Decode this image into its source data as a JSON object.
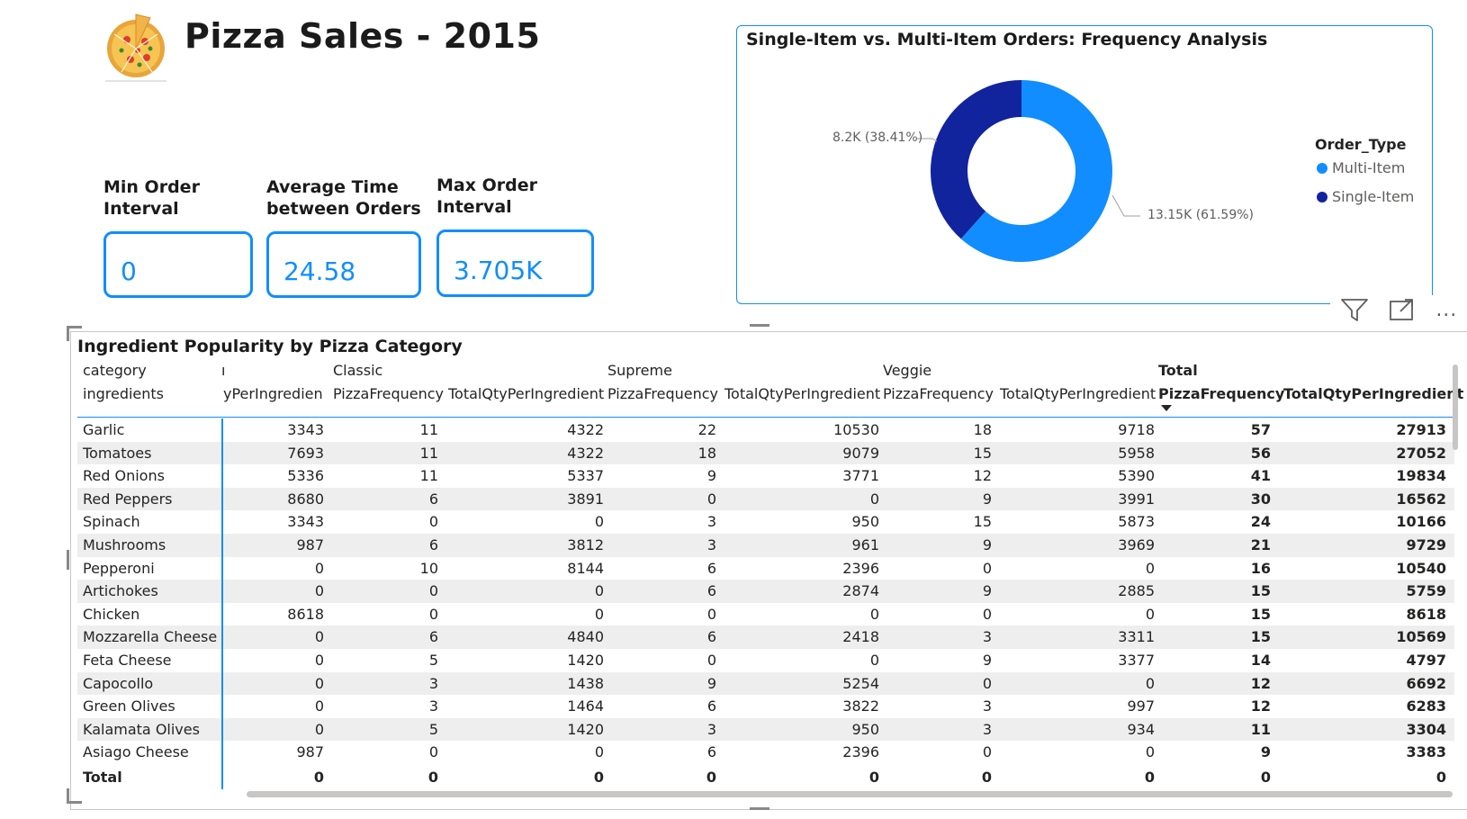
{
  "header": {
    "title": "Pizza Sales - 2015",
    "logo_icon": "pizza-icon"
  },
  "kpis": [
    {
      "label_line1": "Min Order",
      "label_line2": "Interval",
      "value": "0"
    },
    {
      "label_line1": "Average Time",
      "label_line2": "between Orders",
      "value": "24.58"
    },
    {
      "label_line1": "Max Order",
      "label_line2": "Interval",
      "value": "3.705K"
    }
  ],
  "donut": {
    "title": "Single-Item vs. Multi-Item Orders: Frequency Analysis",
    "legend_title": "Order_Type",
    "labels": {
      "single": "8.2K (38.41%)",
      "multi": "13.15K (61.59%)"
    },
    "colors": {
      "multi": "#118dff",
      "single": "#12239e"
    }
  },
  "chart_data": {
    "type": "pie",
    "title": "Single-Item vs. Multi-Item Orders: Frequency Analysis",
    "legend_title": "Order_Type",
    "categories": [
      "Multi-Item",
      "Single-Item"
    ],
    "values": [
      13150,
      8200
    ],
    "percentages": [
      61.59,
      38.41
    ],
    "legend_position": "right"
  },
  "visual_header": {
    "icons": [
      "filter-icon",
      "focus-mode-icon",
      "more-options-icon"
    ],
    "more": "..."
  },
  "table": {
    "title": "Ingredient Popularity by Pizza Category",
    "row_header_label": "category",
    "col_header_label": "ingredients",
    "partial_col_label": "yPerIngredient",
    "partial_group_label": "ı",
    "groups": [
      "Classic",
      "Supreme",
      "Veggie",
      "Total"
    ],
    "measure1": "PizzaFrequency",
    "measure2": "TotalQtyPerIngredient",
    "rows": [
      {
        "name": "Garlic",
        "c0": "3343",
        "c1": "11",
        "c2": "4322",
        "c3": "22",
        "c4": "10530",
        "c5": "18",
        "c6": "9718",
        "t1": "57",
        "t2": "27913"
      },
      {
        "name": "Tomatoes",
        "c0": "7693",
        "c1": "11",
        "c2": "4322",
        "c3": "18",
        "c4": "9079",
        "c5": "15",
        "c6": "5958",
        "t1": "56",
        "t2": "27052"
      },
      {
        "name": "Red Onions",
        "c0": "5336",
        "c1": "11",
        "c2": "5337",
        "c3": "9",
        "c4": "3771",
        "c5": "12",
        "c6": "5390",
        "t1": "41",
        "t2": "19834"
      },
      {
        "name": "Red Peppers",
        "c0": "8680",
        "c1": "6",
        "c2": "3891",
        "c3": "0",
        "c4": "0",
        "c5": "9",
        "c6": "3991",
        "t1": "30",
        "t2": "16562"
      },
      {
        "name": "Spinach",
        "c0": "3343",
        "c1": "0",
        "c2": "0",
        "c3": "3",
        "c4": "950",
        "c5": "15",
        "c6": "5873",
        "t1": "24",
        "t2": "10166"
      },
      {
        "name": "Mushrooms",
        "c0": "987",
        "c1": "6",
        "c2": "3812",
        "c3": "3",
        "c4": "961",
        "c5": "9",
        "c6": "3969",
        "t1": "21",
        "t2": "9729"
      },
      {
        "name": "Pepperoni",
        "c0": "0",
        "c1": "10",
        "c2": "8144",
        "c3": "6",
        "c4": "2396",
        "c5": "0",
        "c6": "0",
        "t1": "16",
        "t2": "10540"
      },
      {
        "name": "Artichokes",
        "c0": "0",
        "c1": "0",
        "c2": "0",
        "c3": "6",
        "c4": "2874",
        "c5": "9",
        "c6": "2885",
        "t1": "15",
        "t2": "5759"
      },
      {
        "name": "Chicken",
        "c0": "8618",
        "c1": "0",
        "c2": "0",
        "c3": "0",
        "c4": "0",
        "c5": "0",
        "c6": "0",
        "t1": "15",
        "t2": "8618"
      },
      {
        "name": "Mozzarella Cheese",
        "c0": "0",
        "c1": "6",
        "c2": "4840",
        "c3": "6",
        "c4": "2418",
        "c5": "3",
        "c6": "3311",
        "t1": "15",
        "t2": "10569"
      },
      {
        "name": "Feta Cheese",
        "c0": "0",
        "c1": "5",
        "c2": "1420",
        "c3": "0",
        "c4": "0",
        "c5": "9",
        "c6": "3377",
        "t1": "14",
        "t2": "4797"
      },
      {
        "name": "Capocollo",
        "c0": "0",
        "c1": "3",
        "c2": "1438",
        "c3": "9",
        "c4": "5254",
        "c5": "0",
        "c6": "0",
        "t1": "12",
        "t2": "6692"
      },
      {
        "name": "Green Olives",
        "c0": "0",
        "c1": "3",
        "c2": "1464",
        "c3": "6",
        "c4": "3822",
        "c5": "3",
        "c6": "997",
        "t1": "12",
        "t2": "6283"
      },
      {
        "name": "Kalamata Olives",
        "c0": "0",
        "c1": "5",
        "c2": "1420",
        "c3": "3",
        "c4": "950",
        "c5": "3",
        "c6": "934",
        "t1": "11",
        "t2": "3304"
      },
      {
        "name": "Asiago Cheese",
        "c0": "987",
        "c1": "0",
        "c2": "0",
        "c3": "6",
        "c4": "2396",
        "c5": "0",
        "c6": "0",
        "t1": "9",
        "t2": "3383"
      }
    ],
    "total": {
      "name": "Total",
      "c0": "0",
      "c1": "0",
      "c2": "0",
      "c3": "0",
      "c4": "0",
      "c5": "0",
      "c6": "0",
      "t1": "0",
      "t2": "0"
    }
  }
}
